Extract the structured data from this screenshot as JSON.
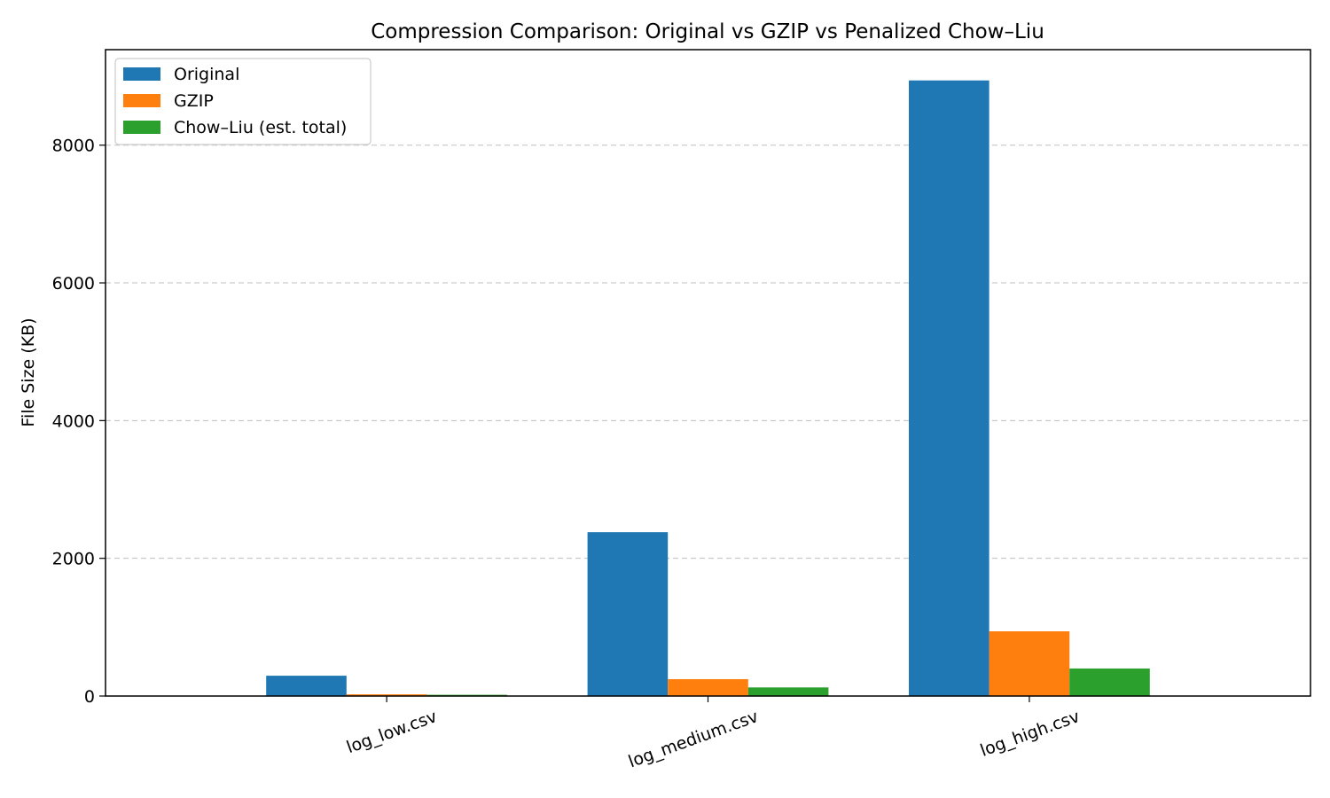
{
  "chart_data": {
    "type": "bar",
    "title": "Compression Comparison: Original vs GZIP vs Penalized Chow–Liu",
    "xlabel": "",
    "ylabel": "File Size (KB)",
    "categories": [
      "log_low.csv",
      "log_medium.csv",
      "log_high.csv"
    ],
    "series": [
      {
        "name": "Original",
        "values": [
          295,
          2380,
          8940
        ],
        "color": "#1f77b4"
      },
      {
        "name": "GZIP",
        "values": [
          25,
          245,
          940
        ],
        "color": "#ff7f0e"
      },
      {
        "name": "Chow–Liu (est. total)",
        "values": [
          18,
          125,
          400
        ],
        "color": "#2ca02c"
      }
    ],
    "ylim": [
      0,
      9387
    ],
    "yticks": [
      0,
      2000,
      4000,
      6000,
      8000
    ],
    "grid": "y-dashed",
    "legend_position": "top-left"
  }
}
